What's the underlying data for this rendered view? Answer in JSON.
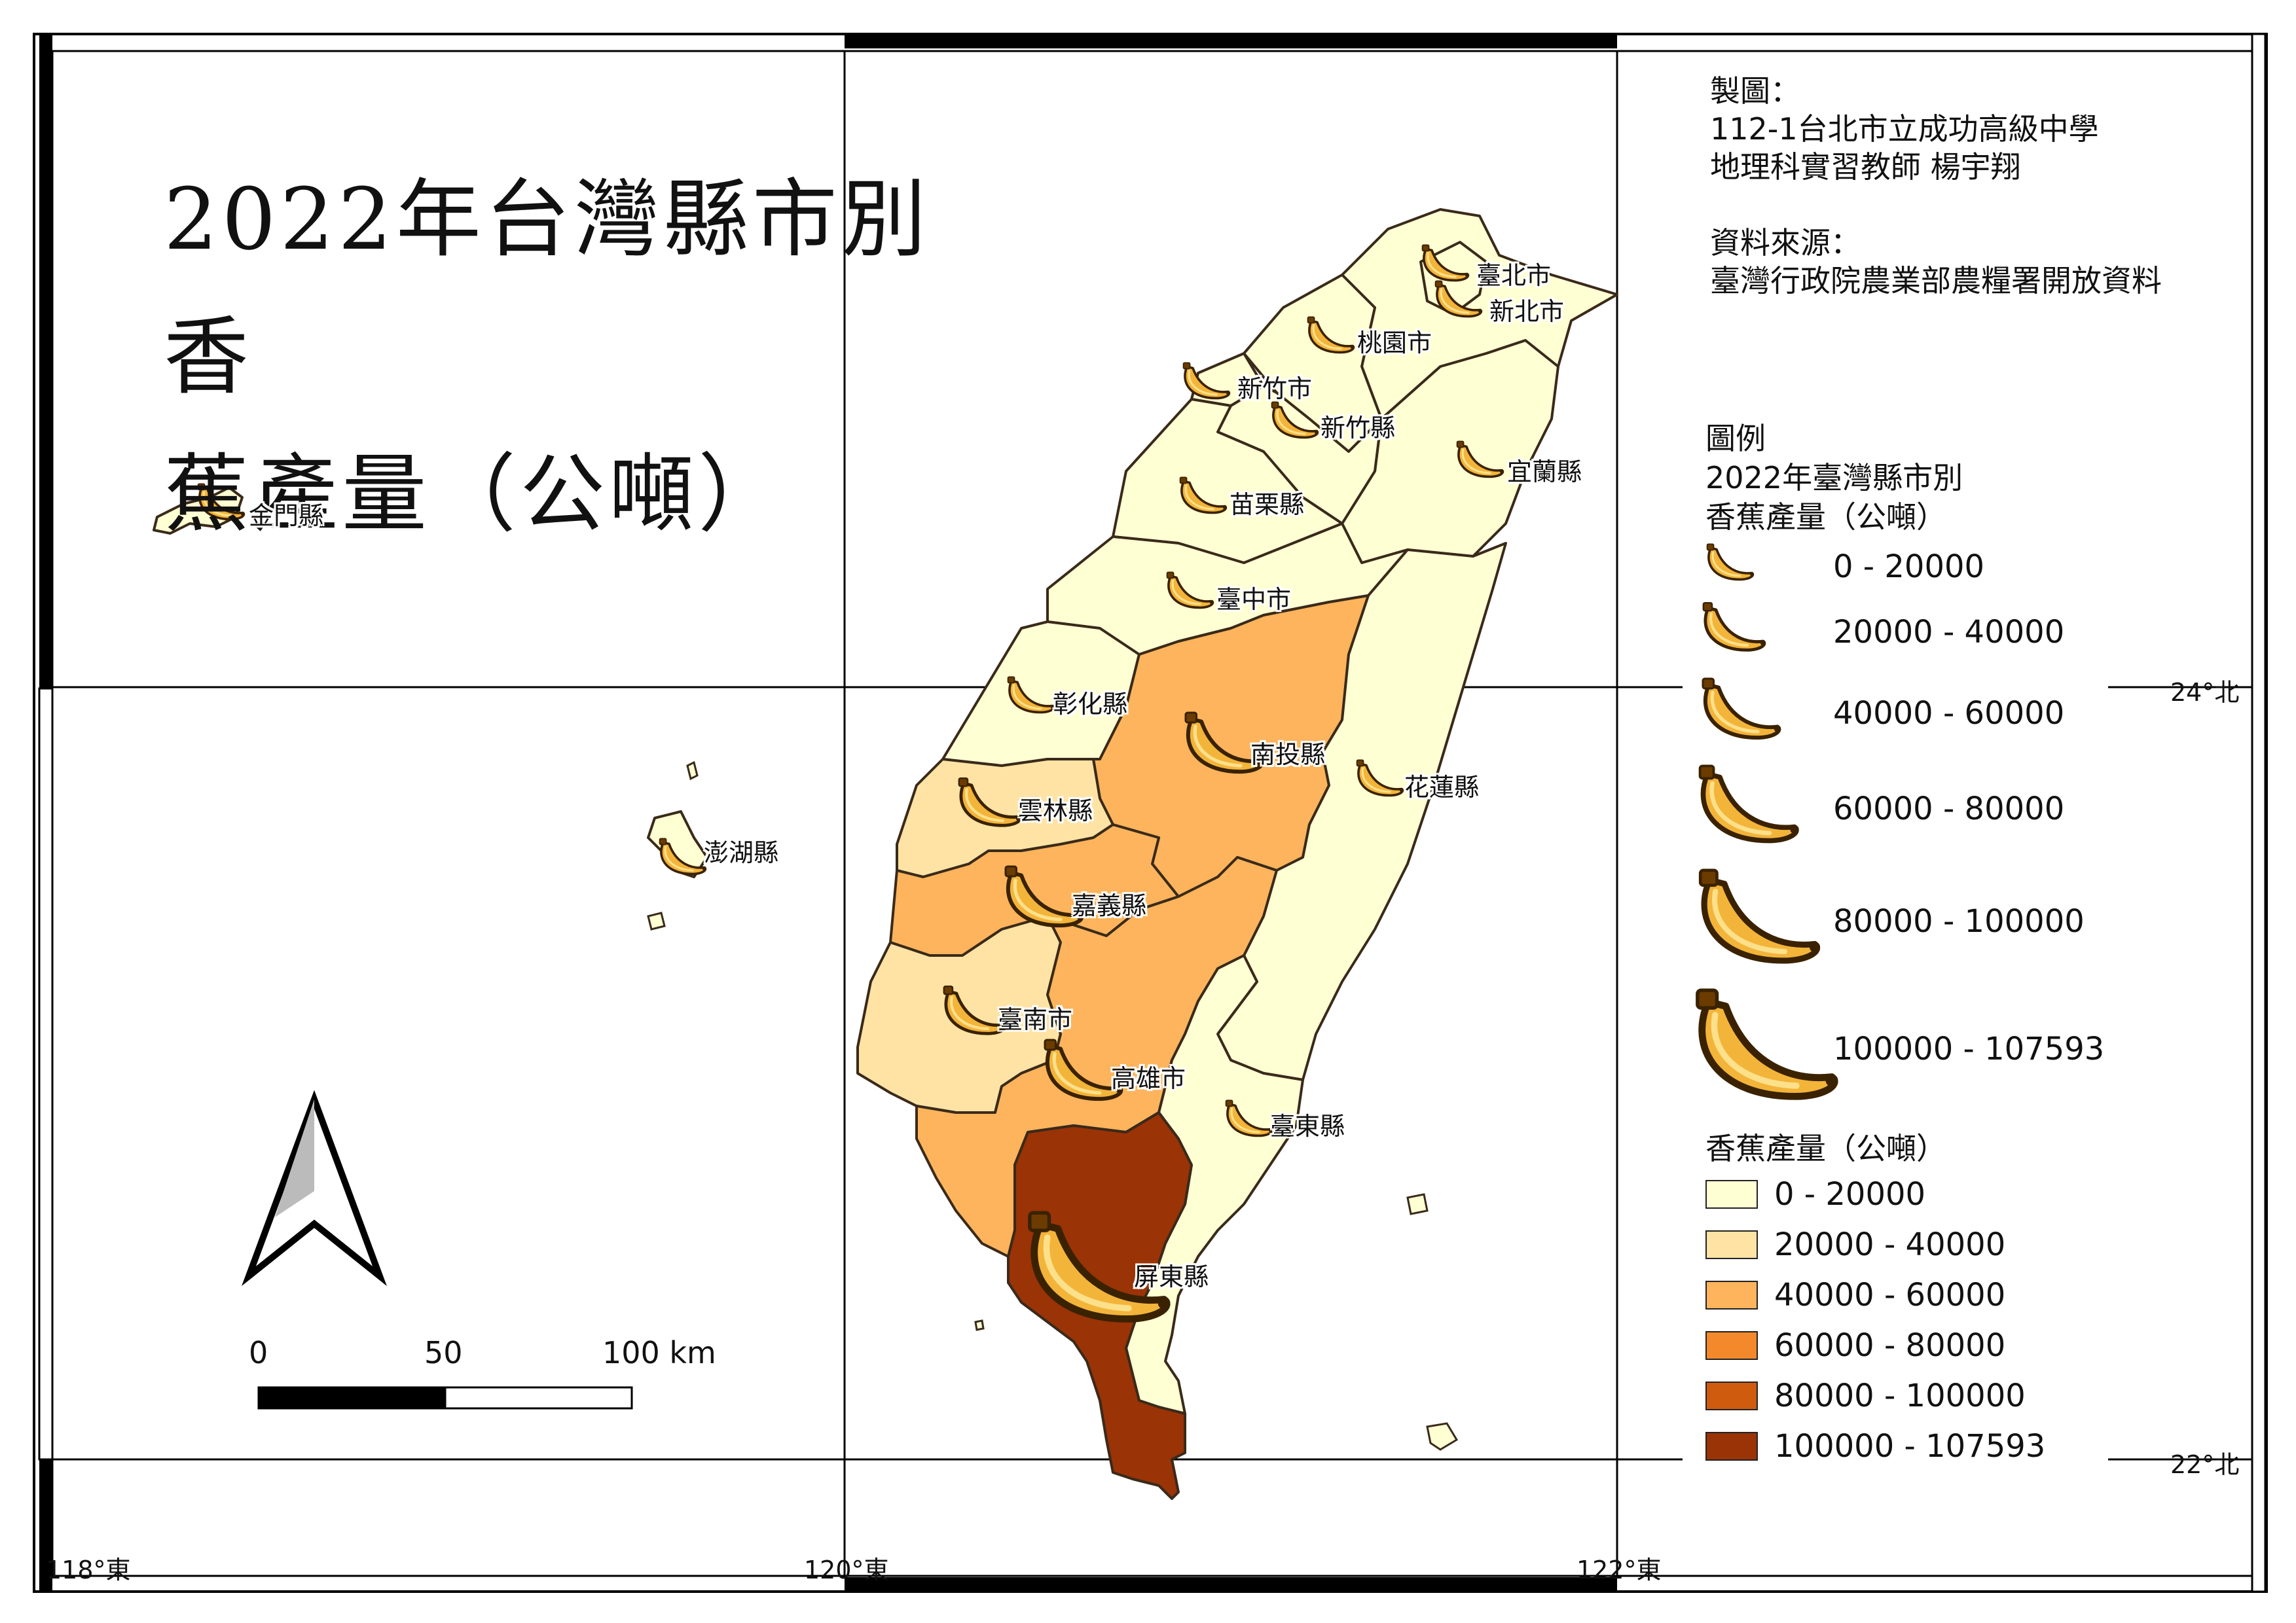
{
  "title": {
    "line1": "2022年台灣縣市別香",
    "line2": "蕉產量（公噸）"
  },
  "credits": {
    "made_by_label": "製圖：",
    "made_by_line1": "112-1台北市立成功高級中學",
    "made_by_line2": "地理科實習教師 楊宇翔",
    "source_label": "資料來源：",
    "source_line": "臺灣行政院農業部農糧署開放資料"
  },
  "legend": {
    "heading": "圖例",
    "symbol_title_line1": "2022年臺灣縣市別",
    "symbol_title_line2": "香蕉產量（公噸）",
    "symbol_classes": [
      "0 - 20000",
      "20000 - 40000",
      "40000 - 60000",
      "60000 - 80000",
      "80000 - 100000",
      "100000 - 107593"
    ],
    "fill_title": "香蕉產量（公噸）",
    "fill_classes": [
      {
        "label": "0 - 20000",
        "color": "#ffffd4"
      },
      {
        "label": "20000 - 40000",
        "color": "#fee3a4"
      },
      {
        "label": "40000 - 60000",
        "color": "#fdb45c"
      },
      {
        "label": "60000 - 80000",
        "color": "#f3892a"
      },
      {
        "label": "80000 - 100000",
        "color": "#cf5b0f"
      },
      {
        "label": "100000 - 107593",
        "color": "#9a3306"
      }
    ]
  },
  "counties": [
    {
      "name": "臺北市",
      "class": 0
    },
    {
      "name": "新北市",
      "class": 0
    },
    {
      "name": "桃園市",
      "class": 0
    },
    {
      "name": "新竹市",
      "class": 0
    },
    {
      "name": "新竹縣",
      "class": 0
    },
    {
      "name": "宜蘭縣",
      "class": 0
    },
    {
      "name": "苗栗縣",
      "class": 0
    },
    {
      "name": "臺中市",
      "class": 0
    },
    {
      "name": "彰化縣",
      "class": 0
    },
    {
      "name": "南投縣",
      "class": 2
    },
    {
      "name": "花蓮縣",
      "class": 0
    },
    {
      "name": "雲林縣",
      "class": 1
    },
    {
      "name": "嘉義縣",
      "class": 2
    },
    {
      "name": "臺南市",
      "class": 1
    },
    {
      "name": "高雄市",
      "class": 2
    },
    {
      "name": "臺東縣",
      "class": 0
    },
    {
      "name": "屏東縣",
      "class": 5
    },
    {
      "name": "金門縣",
      "class": 0
    },
    {
      "name": "澎湖縣",
      "class": 0
    }
  ],
  "graticule": {
    "lon_labels": [
      "118°東",
      "120°東",
      "122°東"
    ],
    "lat_labels": [
      "24°北",
      "22°北"
    ]
  },
  "scale_bar": {
    "labels": [
      "0",
      "50",
      "100 km"
    ]
  },
  "icons": {
    "north_arrow": "north-arrow-icon",
    "symbol": "banana-icon"
  }
}
